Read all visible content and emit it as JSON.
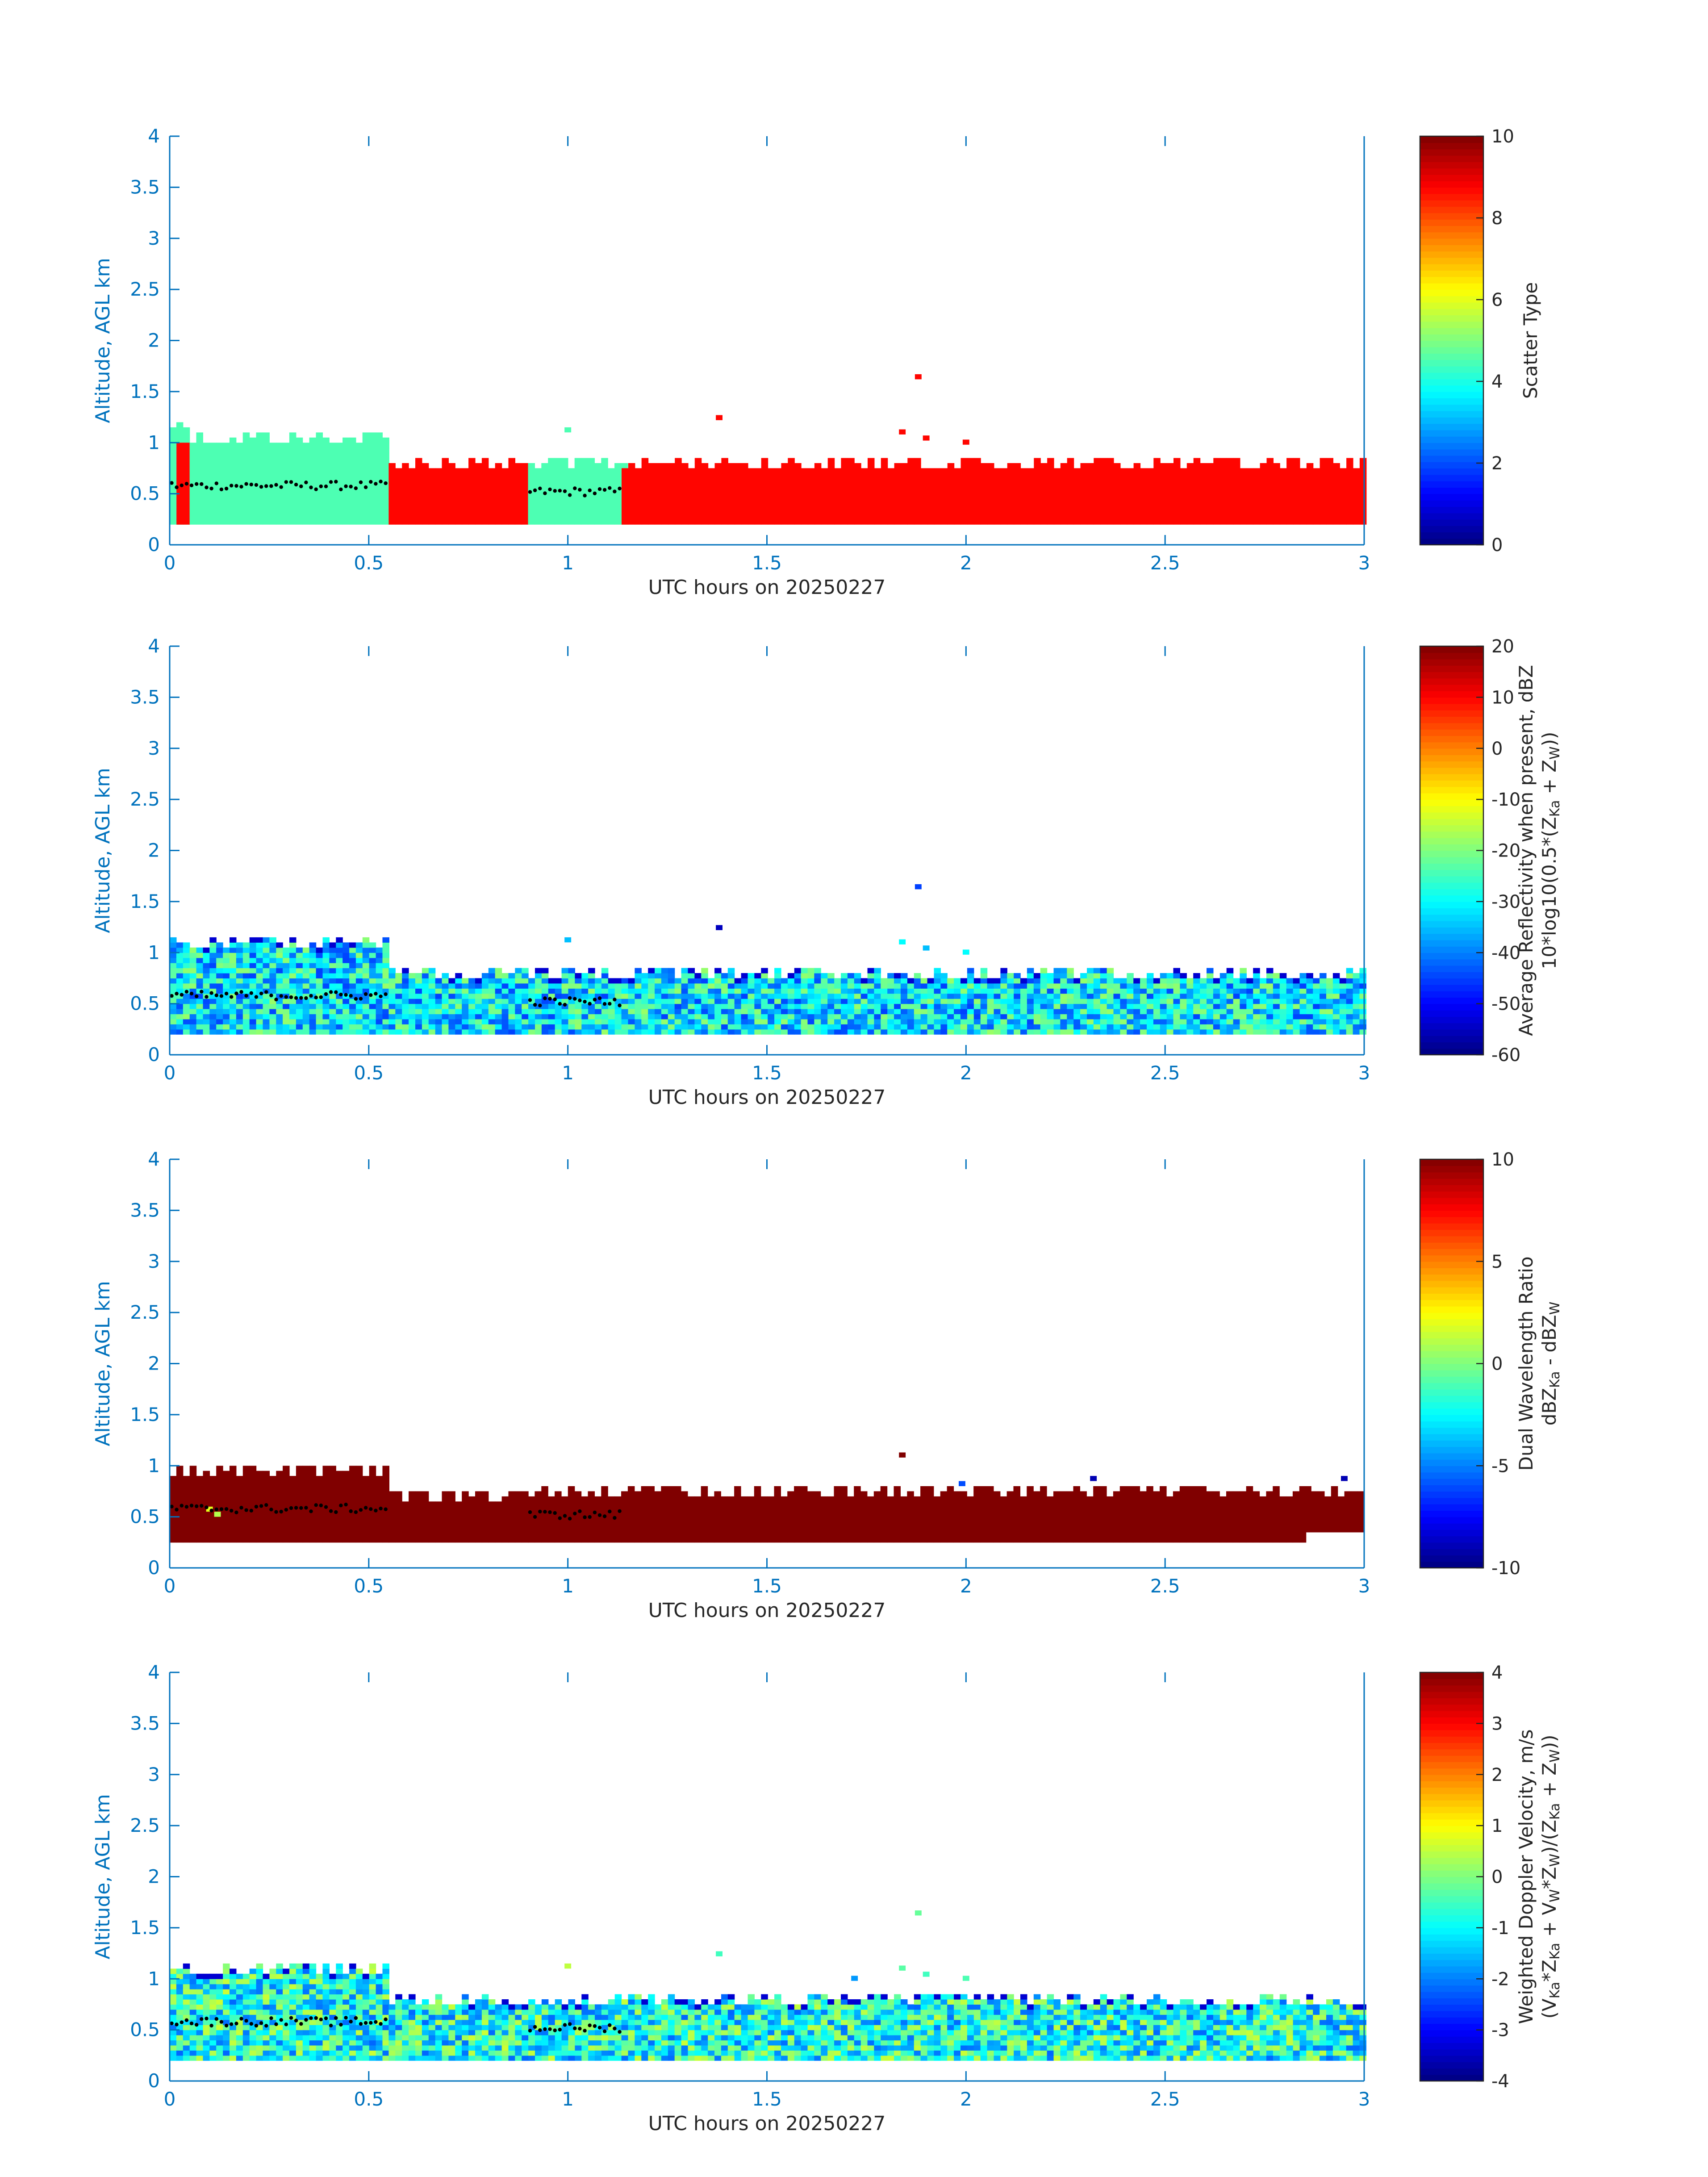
{
  "colors": {
    "axis": "#0072bd",
    "text": "#262626",
    "marker": "#000000"
  },
  "colormap": "jet",
  "chart_data": [
    {
      "type": "heatmap",
      "name": "scatter-type",
      "xlabel": "UTC hours on 20250227",
      "ylabel": "Altitude, AGL km",
      "xlim": [
        0,
        3
      ],
      "ylim": [
        0,
        4
      ],
      "xticks": [
        "0",
        "0.5",
        "1",
        "1.5",
        "2",
        "2.5",
        "3"
      ],
      "yticks": [
        "0",
        "0.5",
        "1",
        "1.5",
        "2",
        "2.5",
        "3",
        "3.5",
        "4"
      ],
      "colorbar": {
        "label": [
          "Scatter Type"
        ],
        "min": 0,
        "max": 10,
        "ticks": [
          "0",
          "2",
          "4",
          "6",
          "8",
          "10"
        ]
      },
      "segments": [
        {
          "x0": 0,
          "x1": 0.035,
          "value": 4.5,
          "bottom": 0.2,
          "top": 1.2
        },
        {
          "x0": 0.017,
          "x1": 0.05,
          "value": 8.7,
          "bottom": 0.2,
          "top": 1.1
        },
        {
          "x0": 0.05,
          "x1": 0.55,
          "value": 4.5,
          "bottom": 0.2,
          "top": 1.1
        },
        {
          "x0": 0.55,
          "x1": 0.9,
          "value": 8.7,
          "bottom": 0.2,
          "top": 0.85
        },
        {
          "x0": 0.9,
          "x1": 1.135,
          "value": 4.5,
          "bottom": 0.2,
          "top": 0.85
        },
        {
          "x0": 1.135,
          "x1": 3.0,
          "value": 8.7,
          "bottom": 0.2,
          "top": 0.85
        }
      ],
      "isolated": [
        {
          "x": 1.0,
          "y": 1.1,
          "value": 4.5
        },
        {
          "x": 1.38,
          "y": 1.22,
          "value": 8.7
        },
        {
          "x": 1.84,
          "y": 1.08,
          "value": 8.7
        },
        {
          "x": 1.88,
          "y": 1.62,
          "value": 8.7
        },
        {
          "x": 1.9,
          "y": 1.02,
          "value": 8.7
        },
        {
          "x": 2.0,
          "y": 0.98,
          "value": 8.7
        }
      ],
      "markers": [
        {
          "x0": 0.0,
          "x1": 0.55,
          "y": 0.58
        },
        {
          "x0": 0.9,
          "x1": 1.13,
          "y": 0.52
        }
      ]
    },
    {
      "type": "heatmap",
      "name": "reflectivity",
      "xlabel": "UTC hours on 20250227",
      "ylabel": "Altitude, AGL km",
      "xlim": [
        0,
        3
      ],
      "ylim": [
        0,
        4
      ],
      "xticks": [
        "0",
        "0.5",
        "1",
        "1.5",
        "2",
        "2.5",
        "3"
      ],
      "yticks": [
        "0",
        "0.5",
        "1",
        "1.5",
        "2",
        "2.5",
        "3",
        "3.5",
        "4"
      ],
      "colorbar": {
        "label": [
          "Average Reflectivity when present, dBZ",
          "10*log10(0.5*(Z",
          "Ka",
          " + Z",
          "W",
          "))"
        ],
        "min": -60,
        "max": 20,
        "ticks": [
          "-60",
          "-50",
          "-40",
          "-30",
          "-20",
          "-10",
          "0",
          "10",
          "20"
        ]
      },
      "range_values": {
        "low": -45,
        "high": -18
      },
      "segments": [
        {
          "x0": 0,
          "x1": 0.55,
          "bottom": 0.2,
          "top": 1.15
        },
        {
          "x0": 0.55,
          "x1": 3.0,
          "bottom": 0.2,
          "top": 0.85
        }
      ],
      "isolated": [
        {
          "x": 1.0,
          "y": 1.1,
          "value": -35
        },
        {
          "x": 1.38,
          "y": 1.22,
          "value": -55
        },
        {
          "x": 1.84,
          "y": 1.08,
          "value": -30
        },
        {
          "x": 1.88,
          "y": 1.62,
          "value": -45
        },
        {
          "x": 1.9,
          "y": 1.02,
          "value": -35
        },
        {
          "x": 2.0,
          "y": 0.98,
          "value": -30
        }
      ],
      "markers": [
        {
          "x0": 0.0,
          "x1": 0.55,
          "y": 0.58
        },
        {
          "x0": 0.9,
          "x1": 1.13,
          "y": 0.52
        }
      ]
    },
    {
      "type": "heatmap",
      "name": "dual-wavelength-ratio",
      "xlabel": "UTC hours on 20250227",
      "ylabel": "Altitude, AGL km",
      "xlim": [
        0,
        3
      ],
      "ylim": [
        0,
        4
      ],
      "xticks": [
        "0",
        "0.5",
        "1",
        "1.5",
        "2",
        "2.5",
        "3"
      ],
      "yticks": [
        "0",
        "0.5",
        "1",
        "1.5",
        "2",
        "2.5",
        "3",
        "3.5",
        "4"
      ],
      "colorbar": {
        "label": [
          "Dual Wavelength Ratio",
          "dBZ",
          "Ka",
          " - dBZ",
          "W"
        ],
        "min": -10,
        "max": 10,
        "ticks": [
          "-10",
          "-5",
          "0",
          "5",
          "10"
        ]
      },
      "dominant_value": 10,
      "segments": [
        {
          "x0": 0,
          "x1": 0.55,
          "bottom": 0.25,
          "top": 1.0
        },
        {
          "x0": 0.55,
          "x1": 0.9,
          "bottom": 0.25,
          "top": 0.72
        },
        {
          "x0": 0.9,
          "x1": 2.85,
          "bottom": 0.25,
          "top": 0.8
        },
        {
          "x0": 2.85,
          "x1": 3.0,
          "bottom": 0.35,
          "top": 0.8
        }
      ],
      "isolated": [
        {
          "x": 1.84,
          "y": 1.08,
          "value": 10
        },
        {
          "x": 0.1,
          "y": 0.55,
          "value": 2
        },
        {
          "x": 0.12,
          "y": 0.5,
          "value": 1
        },
        {
          "x": 1.99,
          "y": 0.8,
          "value": -6
        },
        {
          "x": 2.32,
          "y": 0.85,
          "value": -9
        },
        {
          "x": 2.95,
          "y": 0.85,
          "value": -9
        }
      ],
      "markers": [
        {
          "x0": 0.0,
          "x1": 0.55,
          "y": 0.58
        },
        {
          "x0": 0.9,
          "x1": 1.13,
          "y": 0.52
        }
      ]
    },
    {
      "type": "heatmap",
      "name": "weighted-doppler-velocity",
      "xlabel": "UTC hours on 20250227",
      "ylabel": "Altitude, AGL km",
      "xlim": [
        0,
        3
      ],
      "ylim": [
        0,
        4
      ],
      "xticks": [
        "0",
        "0.5",
        "1",
        "1.5",
        "2",
        "2.5",
        "3"
      ],
      "yticks": [
        "0",
        "0.5",
        "1",
        "1.5",
        "2",
        "2.5",
        "3",
        "3.5",
        "4"
      ],
      "colorbar": {
        "label": [
          "Weighted Doppler Velocity, m/s",
          "(V",
          "Ka",
          "*Z",
          "Ka",
          " + V",
          "W",
          "*Z",
          "W",
          ")/(Z",
          "Ka",
          " + Z",
          "W",
          "))"
        ],
        "min": -4,
        "max": 4,
        "ticks": [
          "-4",
          "-3",
          "-2",
          "-1",
          "0",
          "1",
          "2",
          "3",
          "4"
        ]
      },
      "range_values": {
        "low": -2.2,
        "high": 0.6
      },
      "segments": [
        {
          "x0": 0,
          "x1": 0.55,
          "bottom": 0.2,
          "top": 1.15
        },
        {
          "x0": 0.55,
          "x1": 3.0,
          "bottom": 0.2,
          "top": 0.85
        }
      ],
      "isolated": [
        {
          "x": 1.0,
          "y": 1.1,
          "value": 0.5
        },
        {
          "x": 1.38,
          "y": 1.22,
          "value": -0.5
        },
        {
          "x": 1.72,
          "y": 0.98,
          "value": -1.8
        },
        {
          "x": 1.84,
          "y": 1.08,
          "value": -0.3
        },
        {
          "x": 1.88,
          "y": 1.62,
          "value": -0.2
        },
        {
          "x": 1.9,
          "y": 1.02,
          "value": -0.5
        },
        {
          "x": 2.0,
          "y": 0.98,
          "value": -0.4
        }
      ],
      "markers": [
        {
          "x0": 0.0,
          "x1": 0.55,
          "y": 0.58
        },
        {
          "x0": 0.9,
          "x1": 1.13,
          "y": 0.52
        }
      ]
    }
  ]
}
